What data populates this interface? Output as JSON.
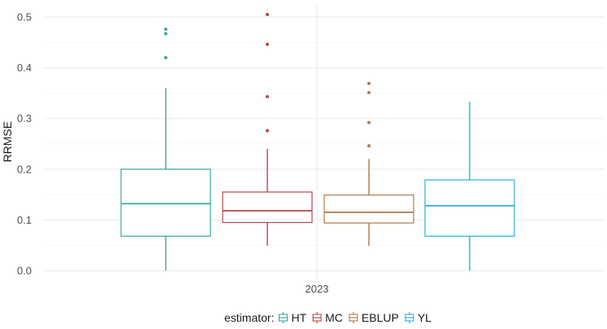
{
  "chart_data": {
    "type": "boxplot",
    "title": "",
    "xlabel": "",
    "ylabel": "RRMSE",
    "categories": [
      "2023"
    ],
    "ylim": [
      -0.02,
      0.52
    ],
    "yticks": [
      0.0,
      0.1,
      0.2,
      0.3,
      0.4,
      0.5
    ],
    "ytick_labels": [
      "0.0",
      "0.1",
      "0.2",
      "0.3",
      "0.4",
      "0.5"
    ],
    "grid": true,
    "legend": {
      "position": "bottom",
      "title": "estimator:",
      "entries": [
        "HT",
        "MC",
        "EBLUP",
        "YL"
      ]
    },
    "series": [
      {
        "name": "HT",
        "color": "#3aa89f",
        "min": 0.0,
        "q1": 0.068,
        "median": 0.132,
        "q3": 0.2,
        "max": 0.36,
        "outliers": [
          0.42,
          0.467,
          0.476
        ]
      },
      {
        "name": "MC",
        "color": "#b5474c",
        "min": 0.049,
        "q1": 0.095,
        "median": 0.118,
        "q3": 0.155,
        "max": 0.24,
        "outliers": [
          0.276,
          0.343,
          0.446,
          0.505
        ]
      },
      {
        "name": "EBLUP",
        "color": "#b07a4a",
        "min": 0.049,
        "q1": 0.094,
        "median": 0.115,
        "q3": 0.149,
        "max": 0.22,
        "outliers": [
          0.246,
          0.292,
          0.351,
          0.369
        ]
      },
      {
        "name": "YL",
        "color": "#2ab0d8",
        "min": 0.0,
        "q1": 0.068,
        "median": 0.128,
        "q3": 0.179,
        "max": 0.333,
        "outliers": []
      }
    ]
  }
}
